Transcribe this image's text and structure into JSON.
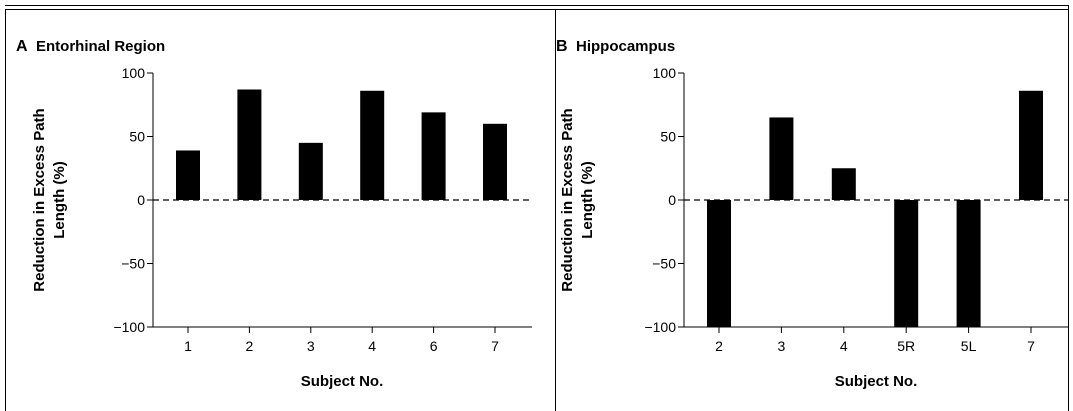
{
  "chart_data": [
    {
      "type": "bar",
      "panel_letter": "A",
      "title": "Entorhinal Region",
      "xlabel": "Subject No.",
      "ylabel_line1": "Reduction in Excess Path",
      "ylabel_line2": "Length (%)",
      "ylim": [
        -100,
        100
      ],
      "yticks": [
        100,
        50,
        0,
        -50,
        -100
      ],
      "ytick_labels": [
        "100",
        "50",
        "0",
        "−50",
        "−100"
      ],
      "categories": [
        "1",
        "2",
        "3",
        "4",
        "6",
        "7"
      ],
      "values": [
        39,
        87,
        45,
        86,
        69,
        60
      ],
      "bar_color": "#000000",
      "zero_line": "dashed",
      "grid": false
    },
    {
      "type": "bar",
      "panel_letter": "B",
      "title": "Hippocampus",
      "xlabel": "Subject No.",
      "ylabel_line1": "Reduction in Excess Path",
      "ylabel_line2": "Length (%)",
      "ylim": [
        -100,
        100
      ],
      "yticks": [
        100,
        50,
        0,
        -50,
        -100
      ],
      "ytick_labels": [
        "100",
        "50",
        "0",
        "−50",
        "−100"
      ],
      "categories": [
        "2",
        "3",
        "4",
        "5R",
        "5L",
        "7"
      ],
      "values": [
        -100,
        65,
        25,
        -100,
        -100,
        86
      ],
      "bar_color": "#000000",
      "zero_line": "dashed",
      "grid": false
    }
  ]
}
